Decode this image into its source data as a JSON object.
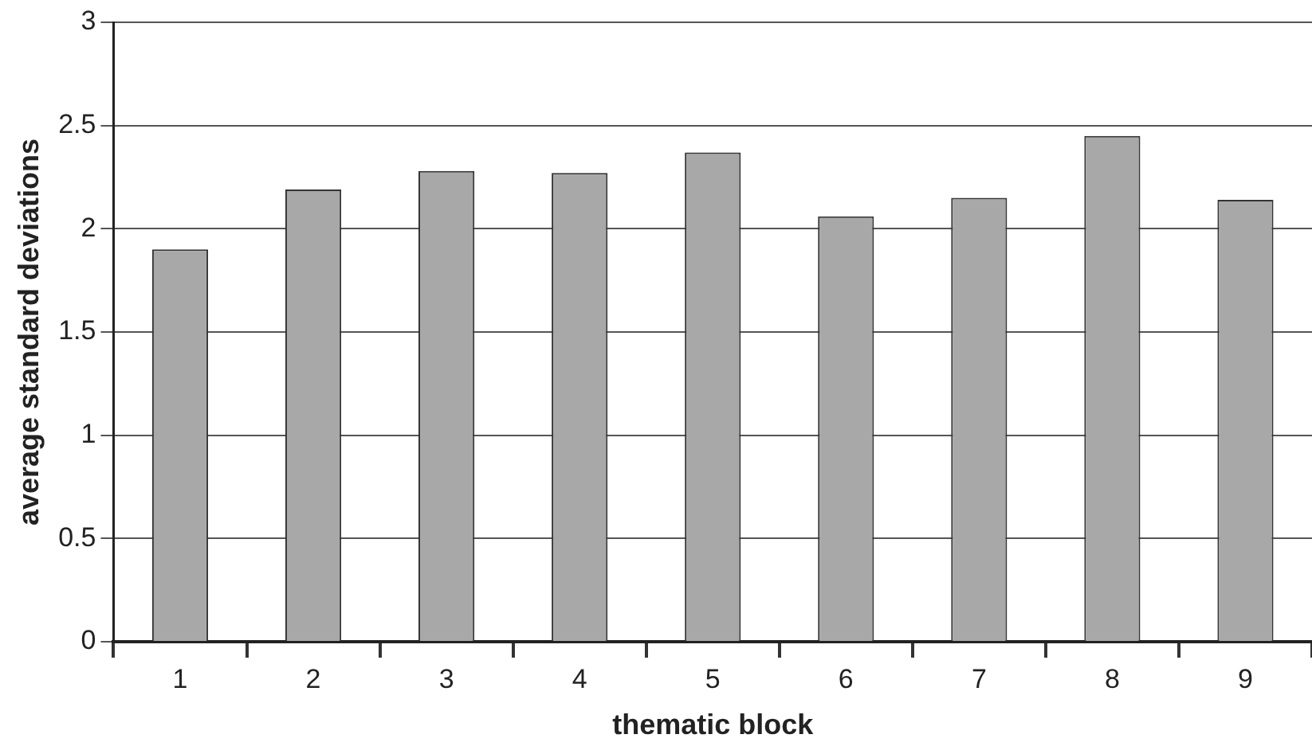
{
  "chart_data": {
    "type": "bar",
    "xlabel": "thematic block",
    "ylabel": "average standard deviations",
    "categories": [
      "1",
      "2",
      "3",
      "4",
      "5",
      "6",
      "7",
      "8",
      "9"
    ],
    "values": [
      1.9,
      2.19,
      2.28,
      2.27,
      2.37,
      2.06,
      2.15,
      2.45,
      2.14
    ],
    "color": "#a8a8a8",
    "ylim": [
      0,
      3
    ],
    "yticks": [
      0,
      0.5,
      1,
      1.5,
      2,
      2.5,
      3
    ],
    "grid": "y",
    "legend": false
  }
}
